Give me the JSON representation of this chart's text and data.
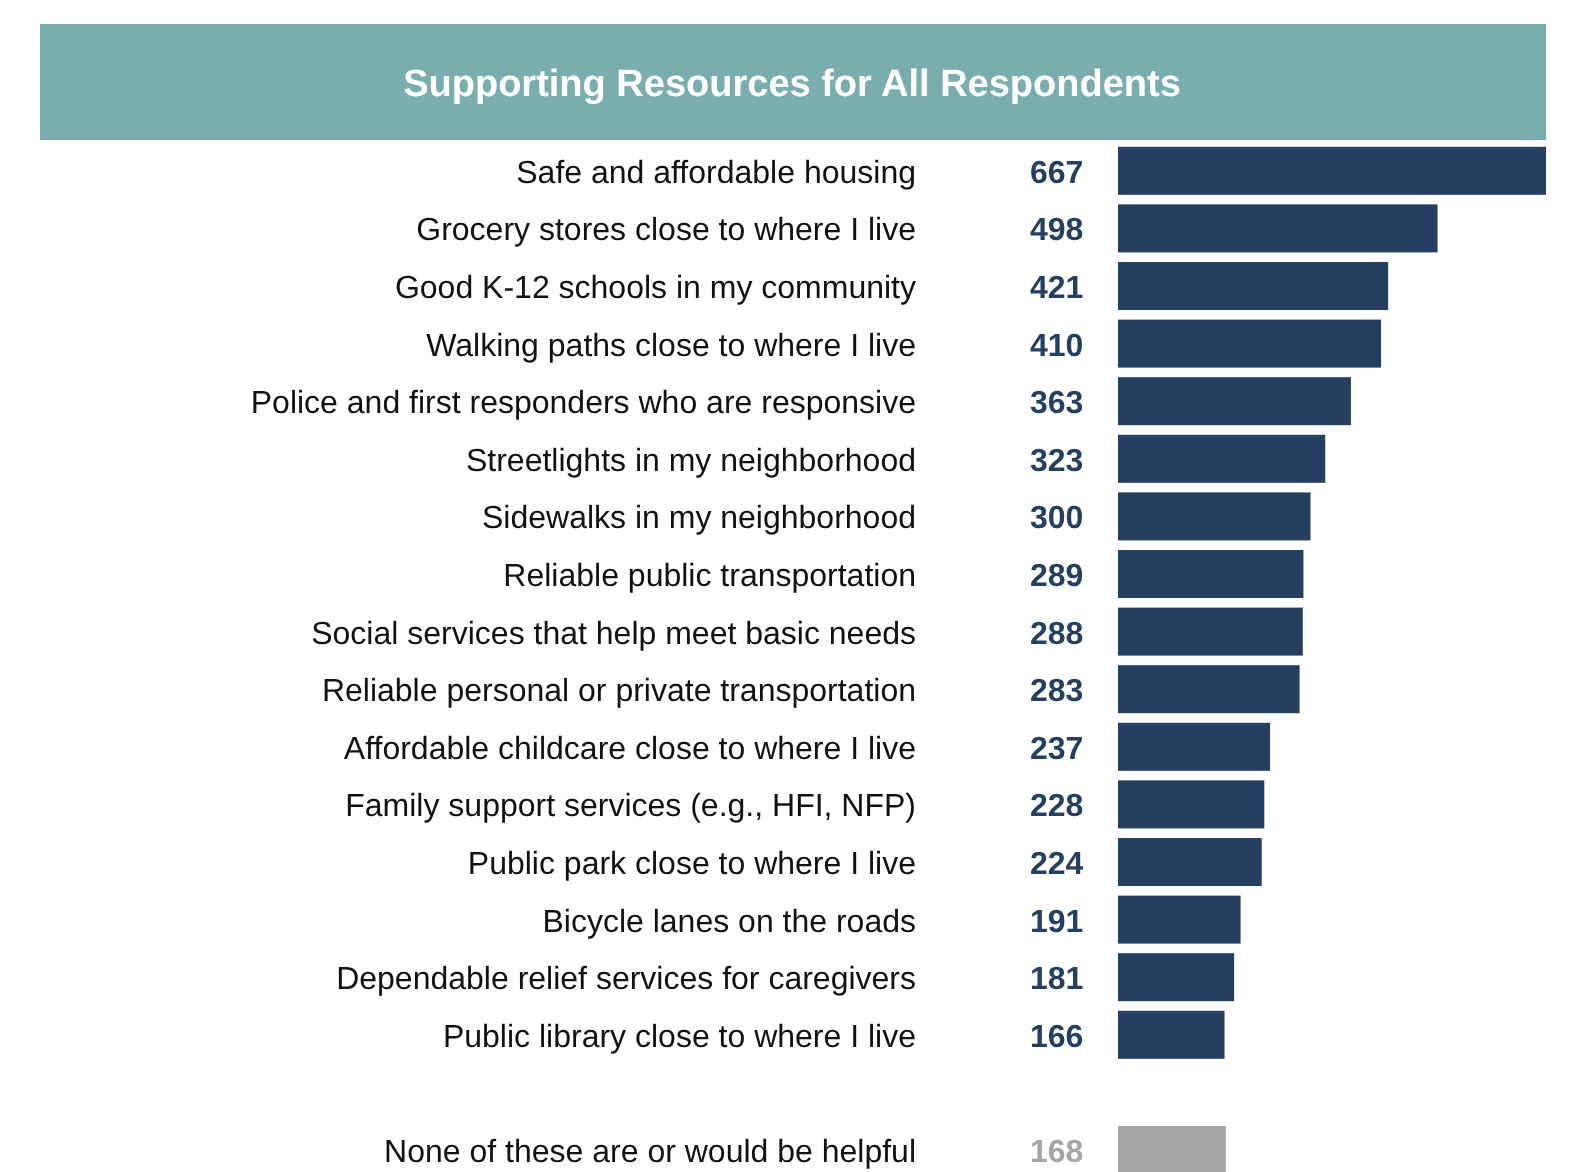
{
  "chart_data": {
    "type": "bar",
    "orientation": "horizontal",
    "title": "Supporting Resources for All Respondents",
    "categories": [
      "Safe and affordable housing",
      "Grocery stores close to where I live",
      "Good K-12 schools in my community",
      "Walking paths close to where I live",
      "Police and first responders who are responsive",
      "Streetlights in my neighborhood",
      "Sidewalks in my neighborhood",
      "Reliable public transportation",
      "Social services that help meet basic needs",
      "Reliable personal or private transportation",
      "Affordable childcare close to where I live",
      "Family support services (e.g., HFI, NFP)",
      "Public park close to where I live",
      "Bicycle lanes on the roads",
      "Dependable relief services for caregivers",
      "Public library close to where I live",
      null,
      "None of these are or would be helpful"
    ],
    "values": [
      667,
      498,
      421,
      410,
      363,
      323,
      300,
      289,
      288,
      283,
      237,
      228,
      224,
      191,
      181,
      166,
      null,
      168
    ],
    "colors": [
      "#243f60",
      "#243f60",
      "#243f60",
      "#243f60",
      "#243f60",
      "#243f60",
      "#243f60",
      "#243f60",
      "#243f60",
      "#243f60",
      "#243f60",
      "#243f60",
      "#243f60",
      "#243f60",
      "#243f60",
      "#243f60",
      null,
      "#a5a5a5"
    ],
    "data_labels": true
  }
}
